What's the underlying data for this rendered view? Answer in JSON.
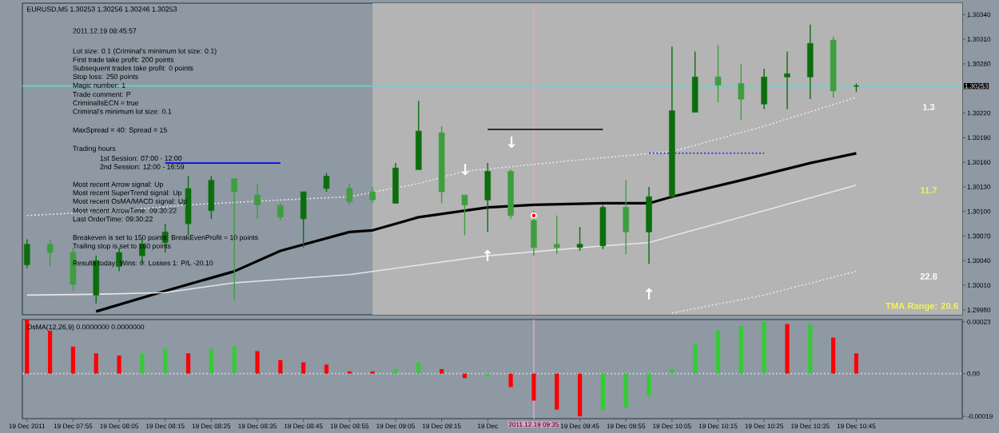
{
  "chart_data": [
    {
      "type": "candlestick",
      "title": "EURUSD,M5  1.30253 1.30256 1.30246 1.30253",
      "x": [
        "2011-12-19T07:45",
        "2011-12-19T07:50",
        "2011-12-19T07:55",
        "2011-12-19T08:00",
        "2011-12-19T08:05",
        "2011-12-19T08:10",
        "2011-12-19T08:15",
        "2011-12-19T08:20",
        "2011-12-19T08:25",
        "2011-12-19T08:30",
        "2011-12-19T08:35",
        "2011-12-19T08:40",
        "2011-12-19T08:45",
        "2011-12-19T08:50",
        "2011-12-19T08:55",
        "2011-12-19T09:00",
        "2011-12-19T09:05",
        "2011-12-19T09:10",
        "2011-12-19T09:15",
        "2011-12-19T09:20",
        "2011-12-19T09:25",
        "2011-12-19T09:30",
        "2011-12-19T09:35",
        "2011-12-19T09:40",
        "2011-12-19T09:45",
        "2011-12-19T09:50",
        "2011-12-19T09:55",
        "2011-12-19T10:00",
        "2011-12-19T10:05",
        "2011-12-19T10:10",
        "2011-12-19T10:15",
        "2011-12-19T10:20",
        "2011-12-19T10:25",
        "2011-12-19T10:30",
        "2011-12-19T10:35",
        "2011-12-19T10:40",
        "2011-12-19T10:45"
      ],
      "ohlc": [
        [
          1.30035,
          1.30066,
          1.30031,
          1.3006
        ],
        [
          1.3006,
          1.30066,
          1.30033,
          1.3005
        ],
        [
          1.3005,
          1.30056,
          1.30003,
          1.30011
        ],
        [
          1.29998,
          1.30046,
          1.29988,
          1.3004
        ],
        [
          1.30033,
          1.30056,
          1.30027,
          1.3005
        ],
        [
          1.30046,
          1.30066,
          1.30036,
          1.3006
        ],
        [
          1.30062,
          1.30085,
          1.3005,
          1.30075
        ],
        [
          1.30085,
          1.30143,
          1.30071,
          1.30128
        ],
        [
          1.30101,
          1.30143,
          1.30091,
          1.30138
        ],
        [
          1.3014,
          1.3014,
          1.29992,
          1.30124
        ],
        [
          1.3012,
          1.30134,
          1.30091,
          1.30108
        ],
        [
          1.30107,
          1.3011,
          1.30089,
          1.30093
        ],
        [
          1.30091,
          1.30124,
          1.30056,
          1.30124
        ],
        [
          1.30128,
          1.30147,
          1.30124,
          1.30143
        ],
        [
          1.30128,
          1.30134,
          1.30108,
          1.30112
        ],
        [
          1.30124,
          1.3013,
          1.3011,
          1.30114
        ],
        [
          1.3011,
          1.30159,
          1.3011,
          1.30153
        ],
        [
          1.30151,
          1.30235,
          1.30151,
          1.30198
        ],
        [
          1.30196,
          1.30204,
          1.3011,
          1.30124
        ],
        [
          1.3012,
          1.3012,
          1.30071,
          1.30108
        ],
        [
          1.30114,
          1.30159,
          1.30075,
          1.30149
        ],
        [
          1.30149,
          1.30151,
          1.30091,
          1.30095
        ],
        [
          1.30089,
          1.30101,
          1.30046,
          1.30056
        ],
        [
          1.3006,
          1.30095,
          1.30048,
          1.30056
        ],
        [
          1.30056,
          1.30081,
          1.30052,
          1.3006
        ],
        [
          1.30058,
          1.30108,
          1.30054,
          1.30105
        ],
        [
          1.30105,
          1.30138,
          1.30048,
          1.30075
        ],
        [
          1.30075,
          1.3013,
          1.30036,
          1.30118
        ],
        [
          1.30118,
          1.30301,
          1.30118,
          1.30223
        ],
        [
          1.30221,
          1.30295,
          1.30221,
          1.30264
        ],
        [
          1.30264,
          1.30303,
          1.30233,
          1.30254
        ],
        [
          1.30256,
          1.3028,
          1.30212,
          1.30237
        ],
        [
          1.30231,
          1.30274,
          1.30225,
          1.30264
        ],
        [
          1.30264,
          1.30295,
          1.30225,
          1.30268
        ],
        [
          1.30264,
          1.30328,
          1.30237,
          1.30305
        ],
        [
          1.30309,
          1.30313,
          1.30239,
          1.30247
        ],
        [
          1.30253,
          1.30256,
          1.30246,
          1.30253
        ]
      ],
      "colors": [
        "#0b6e0b",
        "#3e9e3e",
        "#3e9e3e",
        "#0b6e0b",
        "#0b6e0b",
        "#0b6e0b",
        "#0b6e0b",
        "#0b6e0b",
        "#0b6e0b",
        "#3e9e3e",
        "#3e9e3e",
        "#3e9e3e",
        "#0b6e0b",
        "#0b6e0b",
        "#3e9e3e",
        "#3e9e3e",
        "#0b6e0b",
        "#0b6e0b",
        "#3e9e3e",
        "#3e9e3e",
        "#0b6e0b",
        "#3e9e3e",
        "#3e9e3e",
        "#3e9e3e",
        "#0b6e0b",
        "#0b6e0b",
        "#3e9e3e",
        "#0b6e0b",
        "#0b6e0b",
        "#0b6e0b",
        "#3e9e3e",
        "#3e9e3e",
        "#0b6e0b",
        "#0b6e0b",
        "#0b6e0b",
        "#3e9e3e",
        "#0b6e0b"
      ],
      "series": [
        {
          "type": "line",
          "color": "#000000",
          "x": [
            "2011-12-19T08:00",
            "2011-12-19T08:15",
            "2011-12-19T08:30",
            "2011-12-19T08:40",
            "2011-12-19T08:55",
            "2011-12-19T09:00",
            "2011-12-19T09:10",
            "2011-12-19T09:25",
            "2011-12-19T09:35",
            "2011-12-19T09:50",
            "2011-12-19T10:00",
            "2011-12-19T10:05",
            "2011-12-19T10:20",
            "2011-12-19T10:35",
            "2011-12-19T10:45"
          ],
          "values": [
            1.29978,
            1.30003,
            1.30027,
            1.30052,
            1.30075,
            1.30077,
            1.30093,
            1.30105,
            1.30108,
            1.3011,
            1.3011,
            1.30118,
            1.30138,
            1.30159,
            1.30171
          ]
        },
        {
          "type": "line",
          "color": "#e6e6e6",
          "line_style": "dotted",
          "x": [
            "2011-12-19T07:45",
            "2011-12-19T08:05",
            "2011-12-19T08:20",
            "2011-12-19T08:40",
            "2011-12-19T08:55",
            "2011-12-19T09:10",
            "2011-12-19T09:20",
            "2011-12-19T09:45",
            "2011-12-19T10:05",
            "2011-12-19T10:25",
            "2011-12-19T10:45"
          ],
          "values": [
            1.30095,
            1.30101,
            1.30108,
            1.30114,
            1.30118,
            1.30134,
            1.30149,
            1.30163,
            1.30173,
            1.30204,
            1.30239
          ]
        },
        {
          "type": "line",
          "color": "#e6e6e6",
          "x": [
            "2011-12-19T07:45",
            "2011-12-19T08:00",
            "2011-12-19T08:15",
            "2011-12-19T08:30",
            "2011-12-19T08:55",
            "2011-12-19T09:25",
            "2011-12-19T09:50",
            "2011-12-19T10:00",
            "2011-12-19T10:05",
            "2011-12-19T10:25",
            "2011-12-19T10:45"
          ],
          "values": [
            1.29998,
            1.29999,
            1.30001,
            1.30013,
            1.30023,
            1.30046,
            1.30058,
            1.30062,
            1.3007,
            1.30101,
            1.30132
          ]
        },
        {
          "type": "line",
          "color": "#e6e6e6",
          "line_style": "dotted",
          "x": [
            "2011-12-19T10:05",
            "2011-12-19T10:25",
            "2011-12-19T10:45"
          ],
          "values": [
            1.29976,
            1.29998,
            1.30027
          ]
        },
        {
          "type": "line",
          "color": "#0000ff",
          "x": [
            "2011-12-19T08:15",
            "2011-12-19T08:40"
          ],
          "values": [
            1.30159,
            1.30159
          ]
        },
        {
          "type": "line",
          "color": "#000000",
          "x": [
            "2011-12-19T09:25",
            "2011-12-19T09:50"
          ],
          "values": [
            1.302,
            1.302
          ]
        },
        {
          "type": "line",
          "color": "#2020ff",
          "line_style": "dotted",
          "x": [
            "2011-12-19T10:00",
            "2011-12-19T10:25"
          ],
          "values": [
            1.30171,
            1.30171
          ]
        },
        {
          "type": "scatter",
          "color": "#ff0000",
          "marker": "circle",
          "x": [
            "2011-12-19T09:35"
          ],
          "values": [
            1.30095
          ]
        }
      ],
      "xlim": [
        "2011-12-19T07:44",
        "2011-12-19T11:08"
      ],
      "ylim": [
        1.29974,
        1.30354
      ],
      "yticks": [
        {
          "value": 1.3034,
          "label": "1.30340"
        },
        {
          "value": 1.3031,
          "label": "1.30310"
        },
        {
          "value": 1.3028,
          "label": "1.30280"
        },
        {
          "value": 1.3022,
          "label": "1.30220"
        },
        {
          "value": 1.3019,
          "label": "1.30190"
        },
        {
          "value": 1.3016,
          "label": "1.30160"
        },
        {
          "value": 1.3013,
          "label": "1.30130"
        },
        {
          "value": 1.301,
          "label": "1.30100"
        },
        {
          "value": 1.3007,
          "label": "1.30070"
        },
        {
          "value": 1.3004,
          "label": "1.30040"
        },
        {
          "value": 1.3001,
          "label": "1.30010"
        },
        {
          "value": 1.2998,
          "label": "1.29980"
        }
      ],
      "tick_labels": "y",
      "ref_lines": [
        {
          "axis": "y",
          "value": 1.30253,
          "label": "1.30253",
          "color": "#6fd0cc"
        },
        {
          "axis": "x",
          "value": "2011-12-19T09:35",
          "color": "#e4a2c8"
        }
      ],
      "bands": [
        {
          "axis": "x",
          "from": "2011-12-19T09:00",
          "to": "2011-12-19T11:08",
          "color": "#b4b4b4"
        }
      ],
      "annotations": [
        "2011.12.19 08:45:57",
        "Lot size: 0.1 (Criminal's minimum lot size: 0.1)",
        "First trade take profit: 200 points",
        "Subsequent trades take profit: 0 points",
        "Stop loss: 250 points",
        "Magic number: 1",
        "Trade comment: P",
        "CriminalIsECN = true",
        "Criminal's minimum lot size: 0.1",
        "MaxSpread = 40: Spread = 15",
        "Trading hours",
        "1st Session: 07:00 - 12:00",
        "2nd Session: 12:00 - 16:59",
        "Most recent Arrow signal: Up",
        "Most recent SuperTrend signal: Up",
        "Most recent OsMA/MACD signal: Up",
        "Most recent ArrowTime: 09:30:22",
        "Last OrderTime: 09:30:22",
        "Breakeven is set to 150 points: BreakEvenProfit = 10 points",
        "Trailing stop is set to 160 points",
        "Results today: Wins: 0: Losses 1: P/L -20.10",
        "1.3",
        "11.7",
        "22.8",
        "TMA Range: 20.6",
        "↓",
        "↓",
        "↑",
        "↑"
      ]
    },
    {
      "type": "bar",
      "title": "OsMA(12,26,9) 0.0000000 0.0000000",
      "x": [
        "2011-12-19T07:45",
        "2011-12-19T07:50",
        "2011-12-19T07:55",
        "2011-12-19T08:00",
        "2011-12-19T08:05",
        "2011-12-19T08:10",
        "2011-12-19T08:15",
        "2011-12-19T08:20",
        "2011-12-19T08:25",
        "2011-12-19T08:30",
        "2011-12-19T08:35",
        "2011-12-19T08:40",
        "2011-12-19T08:45",
        "2011-12-19T08:50",
        "2011-12-19T08:55",
        "2011-12-19T09:00",
        "2011-12-19T09:05",
        "2011-12-19T09:10",
        "2011-12-19T09:15",
        "2011-12-19T09:20",
        "2011-12-19T09:25",
        "2011-12-19T09:30",
        "2011-12-19T09:35",
        "2011-12-19T09:40",
        "2011-12-19T09:45",
        "2011-12-19T09:50",
        "2011-12-19T09:55",
        "2011-12-19T10:00",
        "2011-12-19T10:05",
        "2011-12-19T10:10",
        "2011-12-19T10:15",
        "2011-12-19T10:20",
        "2011-12-19T10:25",
        "2011-12-19T10:30",
        "2011-12-19T10:35",
        "2011-12-19T10:40",
        "2011-12-19T10:45"
      ],
      "values": [
        0.00024,
        0.00019,
        0.00012,
        9e-05,
        8e-05,
        9e-05,
        0.00011,
        9e-05,
        0.00011,
        0.00012,
        0.0001,
        6e-05,
        5e-05,
        4e-05,
        1e-05,
        1e-05,
        2e-05,
        5e-05,
        2e-05,
        -2e-05,
        -1e-05,
        -6e-05,
        -0.00012,
        -0.00016,
        -0.00019,
        -0.00016,
        -0.00015,
        -0.0001,
        2e-05,
        0.00013,
        0.00019,
        0.00021,
        0.00023,
        0.00022,
        0.00022,
        0.00016,
        9e-05
      ],
      "colors": [
        "#ff0000",
        "#ff0000",
        "#ff0000",
        "#ff0000",
        "#ff0000",
        "#32cd32",
        "#32cd32",
        "#ff0000",
        "#32cd32",
        "#32cd32",
        "#ff0000",
        "#ff0000",
        "#ff0000",
        "#ff0000",
        "#ff0000",
        "#ff0000",
        "#32cd32",
        "#32cd32",
        "#ff0000",
        "#ff0000",
        "#32cd32",
        "#ff0000",
        "#ff0000",
        "#ff0000",
        "#ff0000",
        "#32cd32",
        "#32cd32",
        "#32cd32",
        "#32cd32",
        "#32cd32",
        "#32cd32",
        "#32cd32",
        "#32cd32",
        "#ff0000",
        "#32cd32",
        "#ff0000",
        "#ff0000"
      ],
      "xlim": [
        "2011-12-19T07:44",
        "2011-12-19T11:08"
      ],
      "ylim": [
        -0.0002,
        0.00024
      ],
      "xticks": [
        {
          "value": "2011-12-19T07:45",
          "label": "19 Dec 2011"
        },
        {
          "value": "2011-12-19T07:55",
          "label": "19 Dec 07:55"
        },
        {
          "value": "2011-12-19T08:05",
          "label": "19 Dec 08:05"
        },
        {
          "value": "2011-12-19T08:15",
          "label": "19 Dec 08:15"
        },
        {
          "value": "2011-12-19T08:25",
          "label": "19 Dec 08:25"
        },
        {
          "value": "2011-12-19T08:35",
          "label": "19 Dec 08:35"
        },
        {
          "value": "2011-12-19T08:45",
          "label": "19 Dec 08:45"
        },
        {
          "value": "2011-12-19T08:55",
          "label": "19 Dec 08:55"
        },
        {
          "value": "2011-12-19T09:05",
          "label": "19 Dec 09:05"
        },
        {
          "value": "2011-12-19T09:15",
          "label": "19 Dec 09:15"
        },
        {
          "value": "2011-12-19T09:25",
          "label": "19 Dec"
        },
        {
          "value": "2011-12-19T09:45",
          "label": "19 Dec 09:45"
        },
        {
          "value": "2011-12-19T09:55",
          "label": "19 Dec 09:55"
        },
        {
          "value": "2011-12-19T10:05",
          "label": "19 Dec 10:05"
        },
        {
          "value": "2011-12-19T10:15",
          "label": "19 Dec 10:15"
        },
        {
          "value": "2011-12-19T10:25",
          "label": "19 Dec 10:25"
        },
        {
          "value": "2011-12-19T10:35",
          "label": "19 Dec 10:35"
        },
        {
          "value": "2011-12-19T10:45",
          "label": "19 Dec 10:45"
        }
      ],
      "yticks": [
        {
          "value": 0.00023,
          "label": "0.00023"
        },
        {
          "value": 0,
          "label": "0.00"
        },
        {
          "value": -0.00019,
          "label": "-0.00019"
        }
      ],
      "ref_lines": [
        {
          "axis": "y",
          "value": 0,
          "color": "#d2d2d2",
          "line_style": "dotted"
        },
        {
          "axis": "x",
          "value": "2011-12-19T09:35",
          "label": "2011.12.19 09:35",
          "color": "#e4a2c8"
        }
      ]
    }
  ]
}
